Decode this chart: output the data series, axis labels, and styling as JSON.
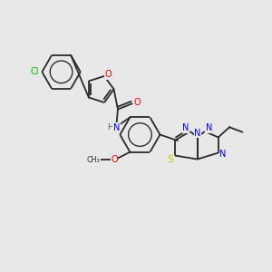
{
  "background_color": "#e8e8e8",
  "bond_color": "#2a2a2a",
  "atom_colors": {
    "O": "#ff0000",
    "N": "#0000ee",
    "S": "#cccc00",
    "Cl": "#00bb00",
    "C": "#2a2a2a",
    "H": "#555555"
  },
  "figsize": [
    3.0,
    3.0
  ],
  "dpi": 100,
  "lw": 1.3
}
